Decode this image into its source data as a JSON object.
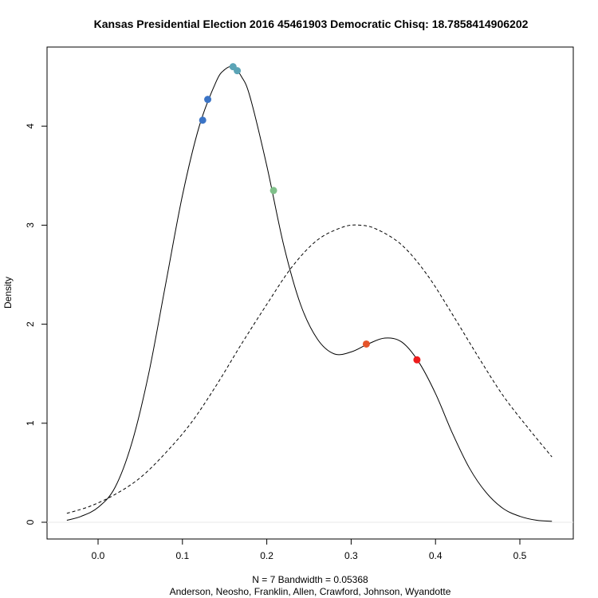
{
  "chart_data": {
    "type": "line",
    "title": "Kansas Presidential Election 2016 45461903 Democratic Chisq: 18.7858414906202",
    "ylabel": "Density",
    "xlabel_line1": "N = 7   Bandwidth = 0.05368",
    "xlabel_line2": "Anderson, Neosho, Franklin, Allen, Crawford, Johnson, Wyandotte",
    "xlim": [
      -0.04,
      0.54
    ],
    "ylim": [
      0,
      4.6
    ],
    "x_ticks": [
      0.0,
      0.1,
      0.2,
      0.3,
      0.4,
      0.5
    ],
    "x_tick_labels": [
      "0.0",
      "0.1",
      "0.2",
      "0.3",
      "0.4",
      "0.5"
    ],
    "y_ticks": [
      0,
      1,
      2,
      3,
      4
    ],
    "y_tick_labels": [
      "0",
      "1",
      "2",
      "3",
      "4"
    ],
    "grid": false,
    "series": [
      {
        "style": "solid",
        "color": "#000000",
        "x": [
          -0.037,
          -0.02,
          0.0,
          0.02,
          0.04,
          0.06,
          0.08,
          0.1,
          0.12,
          0.14,
          0.15,
          0.16,
          0.17,
          0.18,
          0.2,
          0.22,
          0.24,
          0.26,
          0.28,
          0.3,
          0.32,
          0.34,
          0.36,
          0.38,
          0.4,
          0.42,
          0.44,
          0.46,
          0.48,
          0.5,
          0.52,
          0.538
        ],
        "y": [
          0.02,
          0.06,
          0.15,
          0.35,
          0.8,
          1.5,
          2.4,
          3.3,
          4.0,
          4.45,
          4.57,
          4.6,
          4.5,
          4.3,
          3.6,
          2.8,
          2.2,
          1.85,
          1.7,
          1.72,
          1.8,
          1.86,
          1.82,
          1.62,
          1.3,
          0.9,
          0.55,
          0.3,
          0.14,
          0.06,
          0.02,
          0.01
        ]
      },
      {
        "style": "dashed",
        "color": "#000000",
        "x": [
          -0.037,
          -0.01,
          0.02,
          0.05,
          0.08,
          0.11,
          0.14,
          0.17,
          0.2,
          0.23,
          0.26,
          0.29,
          0.31,
          0.33,
          0.36,
          0.39,
          0.42,
          0.45,
          0.48,
          0.51,
          0.538
        ],
        "y": [
          0.09,
          0.16,
          0.28,
          0.45,
          0.7,
          1.0,
          1.38,
          1.8,
          2.2,
          2.58,
          2.85,
          2.98,
          3.0,
          2.96,
          2.8,
          2.5,
          2.1,
          1.68,
          1.28,
          0.95,
          0.66
        ]
      }
    ],
    "points": [
      {
        "x": 0.124,
        "y": 4.06,
        "color": "#3b74c6"
      },
      {
        "x": 0.13,
        "y": 4.27,
        "color": "#3b74c6"
      },
      {
        "x": 0.16,
        "y": 4.6,
        "color": "#5ba4b6"
      },
      {
        "x": 0.165,
        "y": 4.56,
        "color": "#5ba4b6"
      },
      {
        "x": 0.208,
        "y": 3.35,
        "color": "#7fc08a"
      },
      {
        "x": 0.318,
        "y": 1.8,
        "color": "#e5542a"
      },
      {
        "x": 0.378,
        "y": 1.64,
        "color": "#ee1c1c"
      }
    ]
  }
}
